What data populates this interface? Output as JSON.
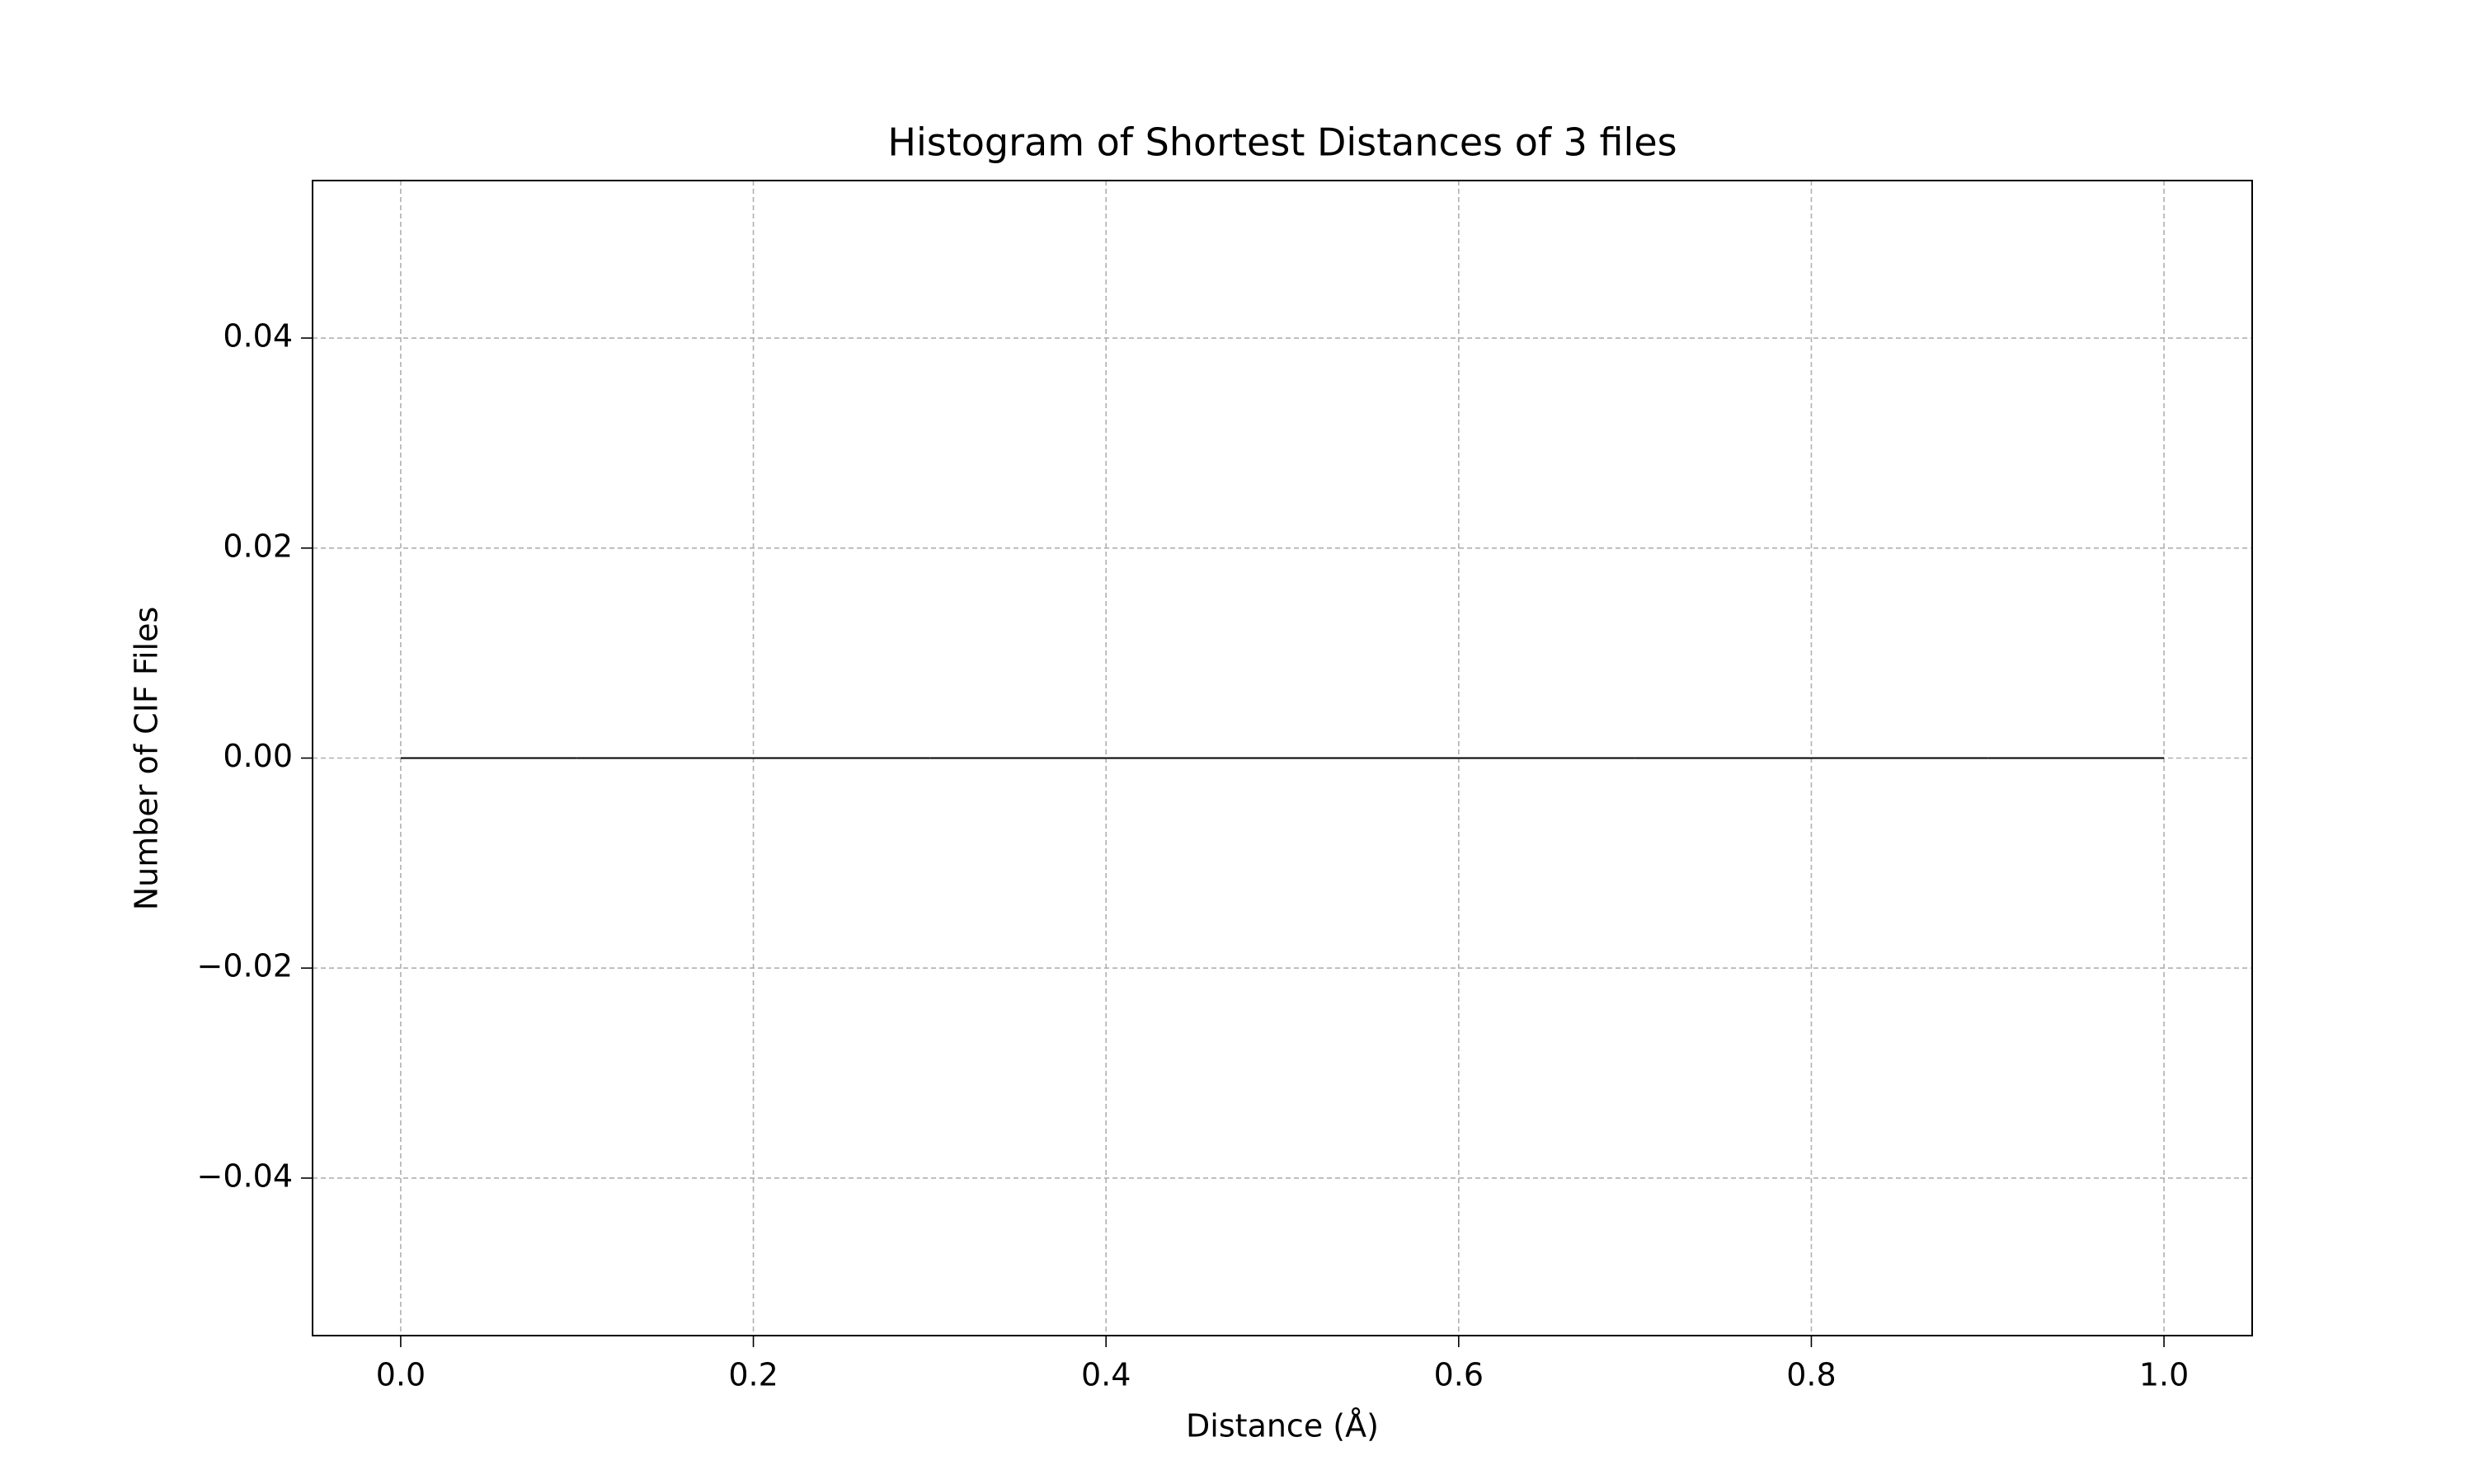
{
  "chart_data": {
    "type": "histogram",
    "title": "Histogram of Shortest Distances of 3 files",
    "xlabel": "Distance (Å)",
    "ylabel": "Number of CIF Files",
    "bins": [
      0,
      0.1,
      0.2,
      0.3,
      0.4,
      0.5,
      0.6,
      0.7,
      0.8,
      0.9,
      1
    ],
    "values": [
      0,
      0,
      0,
      0,
      0,
      0,
      0,
      0,
      0,
      0
    ],
    "color": "#1f77b4",
    "edgecolor": "#000000",
    "xlim": [
      -0.05,
      1.05
    ],
    "xticks": [
      {
        "value": 0,
        "label": "0.0"
      },
      0.2,
      0.4,
      0.6,
      0.8,
      {
        "value": 1,
        "label": "1.0"
      }
    ],
    "ylim": [
      -0.055,
      0.055
    ],
    "yticks": [
      {
        "value": -0.04,
        "label": "−0.04"
      },
      {
        "value": -0.02,
        "label": "−0.02"
      },
      {
        "value": 0,
        "label": "0.00"
      },
      0.02,
      0.04
    ],
    "grid": true
  }
}
